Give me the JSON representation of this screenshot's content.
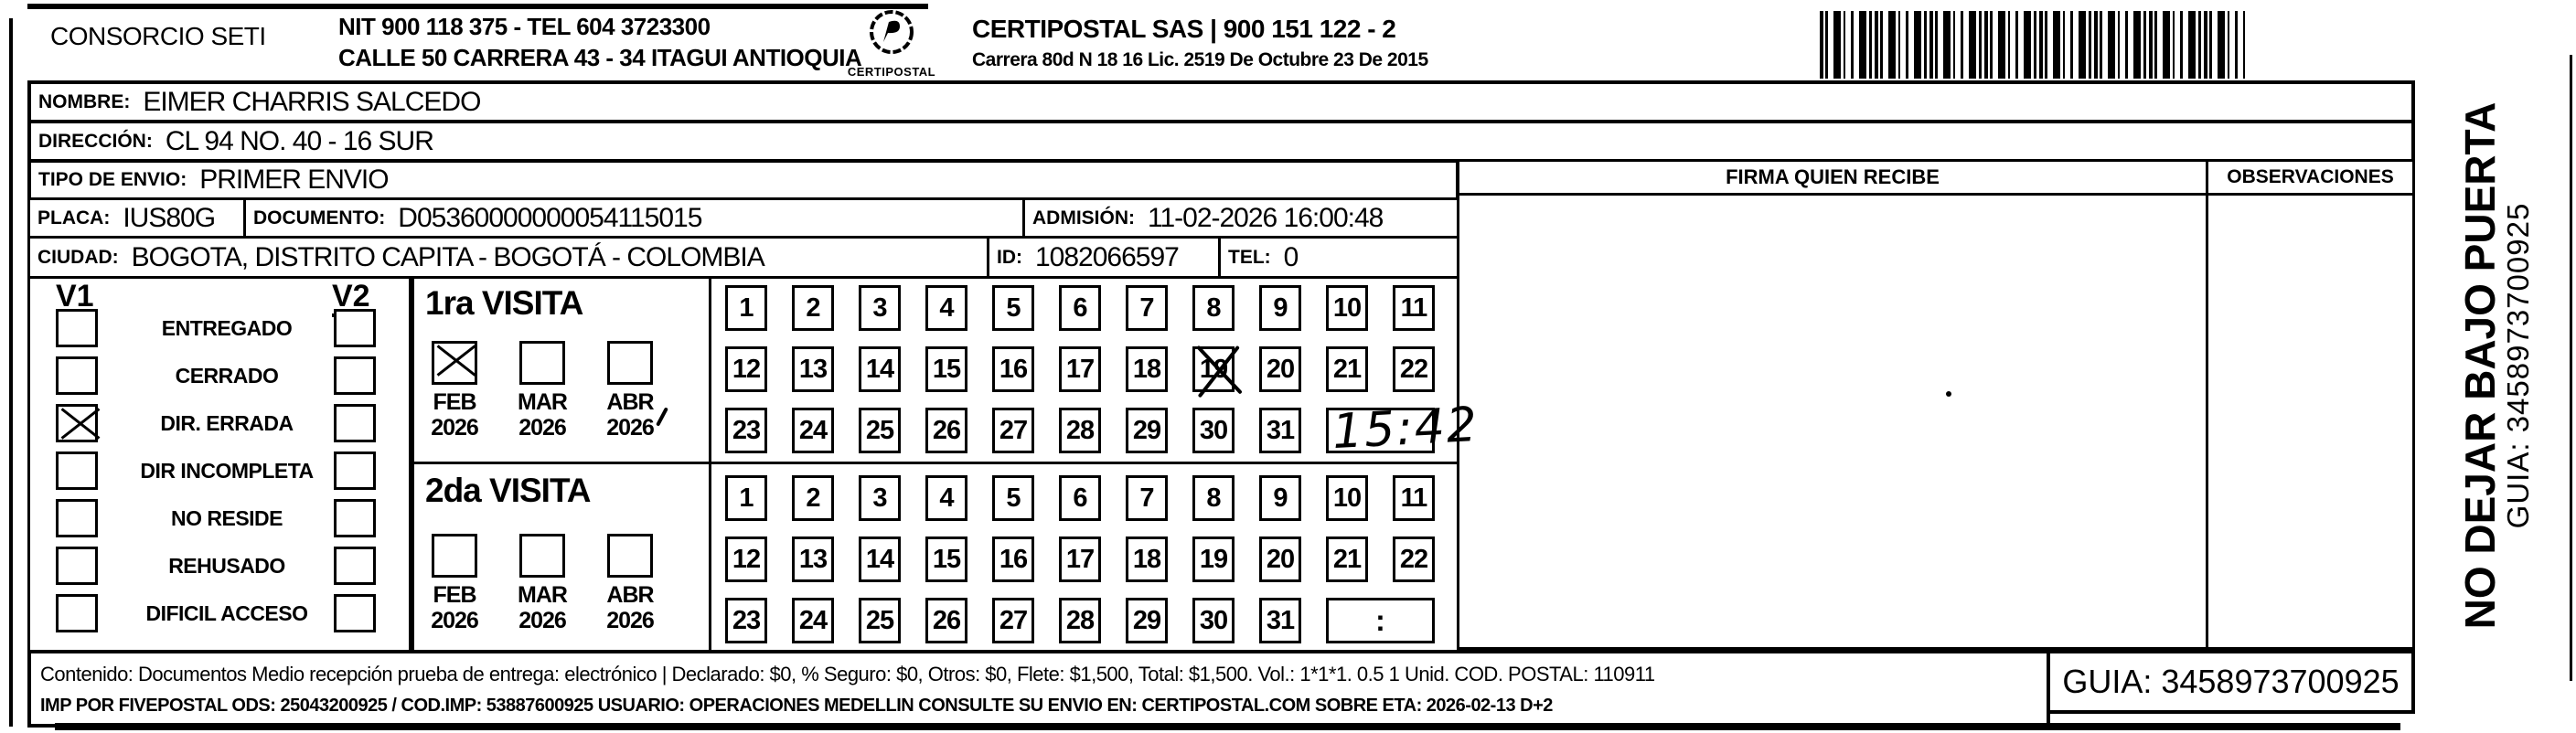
{
  "header": {
    "company": "CONSORCIO SETI",
    "nit_tel": "NIT 900 118 375 - TEL 604 3723300",
    "address": "CALLE 50 CARRERA 43 - 34 ITAGUI ANTIOQUIA",
    "logo_text": "CERTIPOSTAL",
    "certipostal_line": "CERTIPOSTAL SAS | 900 151 122 - 2",
    "license_line": "Carrera 80d N 18 16  Lic. 2519 De Octubre 23 De 2015"
  },
  "recipient": {
    "nombre_label": "NOMBRE:",
    "nombre": "EIMER CHARRIS SALCEDO",
    "direccion_label": "DIRECCIÓN:",
    "direccion": "CL 94 NO. 40 - 16 SUR",
    "tipo_envio_label": "TIPO DE ENVIO:",
    "tipo_envio": "PRIMER ENVIO",
    "placa_label": "PLACA:",
    "placa": "IUS80G",
    "documento_label": "DOCUMENTO:",
    "documento": "D05360000000054115015",
    "admision_label": "ADMISIÓN:",
    "admision": "11-02-2026 16:00:48",
    "ciudad_label": "CIUDAD:",
    "ciudad": "BOGOTA, DISTRITO CAPITA - BOGOTÁ - COLOMBIA",
    "id_label": "ID:",
    "id": "1082066597",
    "tel_label": "TEL:",
    "tel": "0"
  },
  "status_panel": {
    "v1_label": "V1",
    "v2_label": "V2",
    "options": [
      {
        "label": "ENTREGADO",
        "v1_checked": false,
        "v2_checked": false
      },
      {
        "label": "CERRADO",
        "v1_checked": false,
        "v2_checked": false
      },
      {
        "label": "DIR. ERRADA",
        "v1_checked": true,
        "v2_checked": false
      },
      {
        "label": "DIR INCOMPLETA",
        "v1_checked": false,
        "v2_checked": false
      },
      {
        "label": "NO RESIDE",
        "v1_checked": false,
        "v2_checked": false
      },
      {
        "label": "REHUSADO",
        "v1_checked": false,
        "v2_checked": false
      },
      {
        "label": "DIFICIL ACCESO",
        "v1_checked": false,
        "v2_checked": false
      }
    ]
  },
  "visits": {
    "days": [
      1,
      2,
      3,
      4,
      5,
      6,
      7,
      8,
      9,
      10,
      11,
      12,
      13,
      14,
      15,
      16,
      17,
      18,
      19,
      20,
      21,
      22,
      23,
      24,
      25,
      26,
      27,
      28,
      29,
      30,
      31
    ],
    "time_separator": ":",
    "first": {
      "title": "1ra VISITA",
      "months": [
        {
          "month": "FEB",
          "year": "2026",
          "checked": true
        },
        {
          "month": "MAR",
          "year": "2026",
          "checked": false
        },
        {
          "month": "ABR",
          "year": "2026",
          "checked": false
        }
      ],
      "crossed_day": 19,
      "time_written": "15:42"
    },
    "second": {
      "title": "2da VISITA",
      "months": [
        {
          "month": "FEB",
          "year": "2026",
          "checked": false
        },
        {
          "month": "MAR",
          "year": "2026",
          "checked": false
        },
        {
          "month": "ABR",
          "year": "2026",
          "checked": false
        }
      ],
      "crossed_day": null,
      "time_written": ""
    }
  },
  "columns": {
    "firma_header": "FIRMA QUIEN RECIBE",
    "observaciones_header": "OBSERVACIONES"
  },
  "side": {
    "warning": "NO DEJAR BAJO PUERTA",
    "guia": "GUIA: 3458973700925"
  },
  "footer": {
    "line1": "Contenido: Documentos Medio recepción prueba de entrega: electrónico | Declarado: $0, % Seguro: $0, Otros: $0, Flete: $1,500, Total: $1,500. Vol.: 1*1*1. 0.5  1 Unid. COD. POSTAL: 110911",
    "line2": "IMP POR FIVEPOSTAL ODS: 25043200925 / COD.IMP: 53887600925 USUARIO: OPERACIONES MEDELLIN CONSULTE SU ENVIO EN: CERTIPOSTAL.COM SOBRE ETA: 2026-02-13 D+2",
    "guia_box": "GUIA: 3458973700925"
  }
}
